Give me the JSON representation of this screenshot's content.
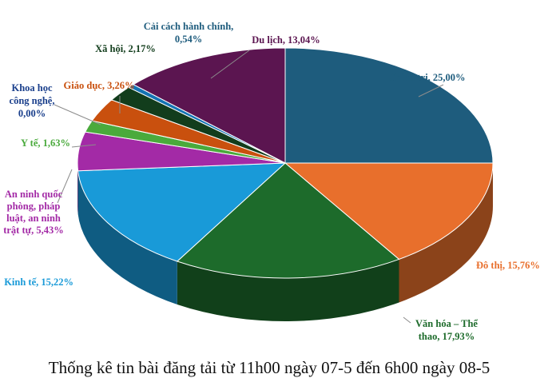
{
  "chart_data": {
    "type": "pie",
    "style": "3d",
    "title": "Thống kê tin bài đăng tải từ 11h00 ngày 07-5 đến 6h00 ngày 08-5",
    "start_category": "Chính trị",
    "direction": "clockwise",
    "slices": [
      {
        "name": "Chính trị",
        "label": "Chính trị, 25,00%",
        "value": 25.0,
        "color": "#1e5c7d"
      },
      {
        "name": "Đô thị",
        "label": "Đô thị, 15,76%",
        "value": 15.76,
        "color": "#e86f2c"
      },
      {
        "name": "Văn hóa – Thể thao",
        "label": "Văn hóa – Thể thao, 17,93%",
        "value": 17.93,
        "color": "#1d6b2b"
      },
      {
        "name": "Kinh tế",
        "label": "Kinh tế, 15,22%",
        "value": 15.22,
        "color": "#199ad8"
      },
      {
        "name": "An ninh quốc phòng, pháp luật, an ninh trật tự",
        "label": "An ninh quốc phòng, pháp luật, an ninh trật tự, 5,43%",
        "value": 5.43,
        "color": "#a32aa6"
      },
      {
        "name": "Y tế",
        "label": "Y tế, 1,63%",
        "value": 1.63,
        "color": "#4aaa3c"
      },
      {
        "name": "Khoa học công nghệ",
        "label": "Khoa học công nghệ, 0,00%",
        "value": 0.0,
        "color": "#1a3f8c"
      },
      {
        "name": "Giáo dục",
        "label": "Giáo dục, 3,26%",
        "value": 3.26,
        "color": "#c9500e"
      },
      {
        "name": "Xã hội",
        "label": "Xã hội, 2,17%",
        "value": 2.17,
        "color": "#123d1c"
      },
      {
        "name": "Cải cách hành chính",
        "label": "Cải cách hành chính, 0,54%",
        "value": 0.54,
        "color": "#1574b4"
      },
      {
        "name": "Du lịch",
        "label": "Du lịch, 13,04%",
        "value": 13.04,
        "color": "#5b1550"
      }
    ]
  }
}
